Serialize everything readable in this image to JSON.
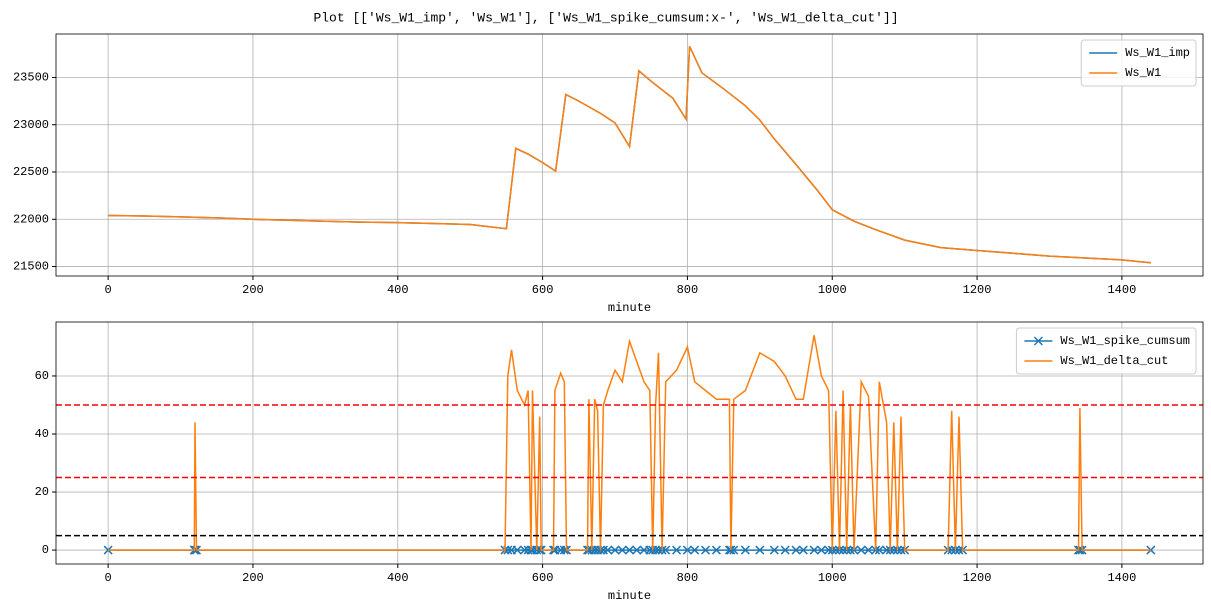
{
  "title": "Plot [['Ws_W1_imp', 'Ws_W1'], ['Ws_W1_spike_cumsum:x-', 'Ws_W1_delta_cut']]",
  "chart_data": [
    {
      "type": "line",
      "xlabel": "minute",
      "grid": true,
      "legend": "upper right",
      "xlim": [
        -72,
        1512
      ],
      "xticks": [
        0,
        200,
        400,
        600,
        800,
        1000,
        1200,
        1400
      ],
      "ylim": [
        21400,
        23960
      ],
      "yticks": [
        21500,
        22000,
        22500,
        23000,
        23500
      ],
      "x": [
        0,
        50,
        100,
        150,
        200,
        250,
        300,
        350,
        400,
        450,
        500,
        550,
        563,
        580,
        600,
        618,
        632,
        650,
        680,
        700,
        720,
        733,
        750,
        780,
        798,
        803,
        820,
        850,
        880,
        900,
        920,
        950,
        980,
        1000,
        1030,
        1060,
        1100,
        1150,
        1200,
        1250,
        1300,
        1350,
        1400,
        1440
      ],
      "series": [
        {
          "name": "Ws_W1_imp",
          "color": "#1f77b4",
          "values": [
            22040,
            22035,
            22025,
            22015,
            22000,
            21990,
            21980,
            21970,
            21965,
            21955,
            21945,
            21900,
            22750,
            22690,
            22600,
            22510,
            23320,
            23250,
            23120,
            23020,
            22770,
            23570,
            23460,
            23280,
            23060,
            23830,
            23550,
            23380,
            23200,
            23050,
            22850,
            22580,
            22300,
            22100,
            21980,
            21890,
            21780,
            21700,
            21670,
            21640,
            21610,
            21590,
            21570,
            21540
          ]
        },
        {
          "name": "Ws_W1",
          "color": "#ff7f0e",
          "values": [
            22040,
            22035,
            22025,
            22015,
            22000,
            21990,
            21980,
            21970,
            21965,
            21955,
            21945,
            21900,
            22750,
            22690,
            22600,
            22510,
            23320,
            23250,
            23120,
            23020,
            22770,
            23570,
            23460,
            23280,
            23060,
            23830,
            23550,
            23380,
            23200,
            23050,
            22850,
            22580,
            22300,
            22100,
            21980,
            21890,
            21780,
            21700,
            21670,
            21640,
            21610,
            21590,
            21570,
            21540
          ]
        }
      ]
    },
    {
      "type": "line",
      "xlabel": "minute",
      "grid": true,
      "legend": "upper right",
      "xlim": [
        -72,
        1512
      ],
      "xticks": [
        0,
        200,
        400,
        600,
        800,
        1000,
        1200,
        1400
      ],
      "ylim": [
        -4.8,
        78.6
      ],
      "yticks": [
        0,
        20,
        40,
        60
      ],
      "hlines": [
        {
          "value": 50,
          "color": "#ff0000"
        },
        {
          "value": 25,
          "color": "#ff0000"
        },
        {
          "value": 5,
          "color": "#000000"
        }
      ],
      "x": [
        0,
        119,
        120,
        122,
        548,
        552,
        557,
        565,
        575,
        580,
        584,
        586,
        592,
        596,
        598,
        615,
        617,
        625,
        630,
        633,
        662,
        664,
        668,
        672,
        676,
        680,
        684,
        690,
        700,
        710,
        720,
        730,
        740,
        748,
        752,
        756,
        760,
        765,
        770,
        785,
        800,
        810,
        825,
        840,
        858,
        860,
        864,
        880,
        900,
        920,
        935,
        950,
        960,
        975,
        985,
        995,
        1000,
        1005,
        1010,
        1015,
        1020,
        1025,
        1030,
        1040,
        1050,
        1060,
        1065,
        1075,
        1080,
        1085,
        1090,
        1095,
        1100,
        1160,
        1165,
        1170,
        1175,
        1180,
        1340,
        1342,
        1345,
        1440
      ],
      "series": [
        {
          "name": "Ws_W1_spike_cumsum",
          "color": "#1f77b4",
          "marker": "x",
          "values": [
            0,
            0,
            0,
            0,
            0,
            0,
            0,
            0,
            0,
            0,
            0,
            0,
            0,
            0,
            0,
            0,
            0,
            0,
            0,
            0,
            0,
            0,
            0,
            0,
            0,
            0,
            0,
            0,
            0,
            0,
            0,
            0,
            0,
            0,
            0,
            0,
            0,
            0,
            0,
            0,
            0,
            0,
            0,
            0,
            0,
            0,
            0,
            0,
            0,
            0,
            0,
            0,
            0,
            0,
            0,
            0,
            0,
            0,
            0,
            0,
            0,
            0,
            0,
            0,
            0,
            0,
            0,
            0,
            0,
            0,
            0,
            0,
            0,
            0,
            0,
            0,
            0,
            0,
            0,
            0,
            0,
            0
          ]
        },
        {
          "name": "Ws_W1_delta_cut",
          "color": "#ff7f0e",
          "values": [
            0,
            0,
            44,
            0,
            0,
            60,
            69,
            55,
            50,
            55,
            0,
            55,
            0,
            46,
            0,
            0,
            55,
            61,
            58,
            0,
            0,
            52,
            0,
            52,
            48,
            0,
            50,
            55,
            62,
            58,
            72,
            65,
            58,
            55,
            0,
            50,
            68,
            0,
            58,
            62,
            70,
            58,
            55,
            52,
            52,
            0,
            52,
            55,
            68,
            65,
            60,
            52,
            52,
            74,
            60,
            55,
            0,
            48,
            0,
            55,
            0,
            50,
            0,
            58,
            53,
            0,
            58,
            44,
            0,
            44,
            0,
            46,
            0,
            0,
            48,
            0,
            46,
            0,
            0,
            49,
            0,
            0
          ]
        }
      ]
    }
  ]
}
